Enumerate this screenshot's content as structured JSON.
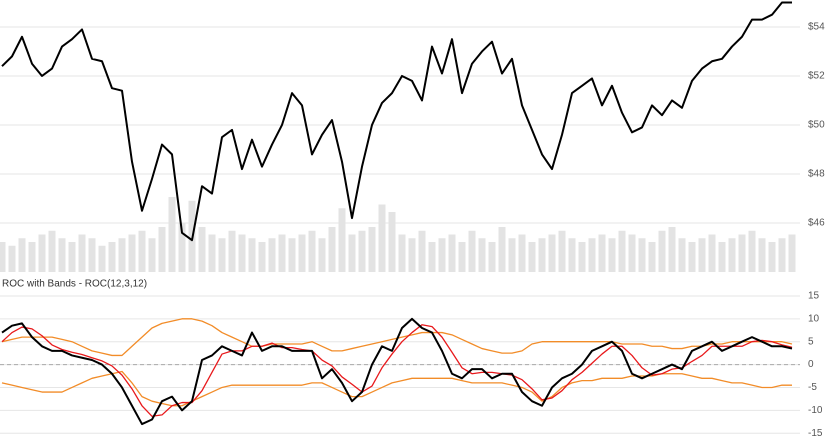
{
  "chart_data": [
    {
      "type": "line",
      "color": "#000000",
      "values": [
        52.4,
        52.8,
        53.6,
        52.5,
        52.0,
        52.3,
        53.2,
        53.5,
        53.9,
        52.7,
        52.6,
        51.5,
        51.4,
        48.5,
        46.5,
        47.8,
        49.2,
        48.8,
        45.6,
        45.3,
        47.5,
        47.2,
        49.5,
        49.8,
        48.2,
        49.4,
        48.3,
        49.2,
        50.0,
        51.3,
        50.8,
        48.8,
        49.6,
        50.2,
        48.5,
        46.2,
        48.3,
        50.0,
        50.9,
        51.3,
        52.0,
        51.8,
        51.0,
        53.2,
        52.1,
        53.5,
        51.3,
        52.5,
        53.0,
        53.4,
        52.1,
        52.7,
        50.8,
        49.8,
        48.8,
        48.2,
        49.6,
        51.3,
        51.6,
        51.9,
        50.8,
        51.6,
        50.5,
        49.7,
        49.9,
        50.8,
        50.4,
        51.0,
        50.7,
        51.8,
        52.3,
        52.6,
        52.7,
        53.2,
        53.6,
        54.3,
        54.3,
        54.5,
        55.0,
        55.0
      ],
      "volume": {
        "type": "bar",
        "color": "#e3e3e3",
        "values": [
          40,
          35,
          45,
          40,
          50,
          55,
          45,
          40,
          50,
          45,
          35,
          40,
          45,
          50,
          55,
          45,
          60,
          100,
          65,
          95,
          60,
          50,
          45,
          55,
          50,
          45,
          40,
          45,
          50,
          45,
          50,
          55,
          45,
          60,
          85,
          50,
          55,
          60,
          90,
          80,
          50,
          45,
          55,
          40,
          45,
          50,
          40,
          55,
          45,
          40,
          60,
          45,
          50,
          40,
          45,
          50,
          55,
          45,
          40,
          45,
          50,
          45,
          55,
          50,
          45,
          40,
          55,
          60,
          45,
          40,
          45,
          50,
          40,
          45,
          50,
          55,
          45,
          40,
          45,
          50
        ]
      },
      "ylim": [
        44,
        55.1
      ],
      "yticks": [
        {
          "value": 46,
          "label": "$46"
        },
        {
          "value": 48,
          "label": "$48"
        },
        {
          "value": 50,
          "label": "$50"
        },
        {
          "value": 52,
          "label": "$52"
        },
        {
          "value": 54,
          "label": "$54"
        }
      ],
      "grid": true
    },
    {
      "type": "line",
      "title": "ROC with Bands - ROC(12,3,12)",
      "series": [
        {
          "color": "#f28c28",
          "values": [
            5,
            5.5,
            6,
            6,
            6,
            6,
            5.5,
            5,
            4,
            3,
            2.5,
            2,
            2,
            4,
            6,
            8,
            9,
            9.5,
            10,
            10,
            9.5,
            8.5,
            7,
            6,
            5,
            4,
            4,
            4.5,
            4.5,
            4.5,
            4.5,
            5,
            4,
            3,
            3,
            3.5,
            4,
            4.5,
            5,
            5.5,
            6,
            6.5,
            7,
            7,
            7,
            6.5,
            5.5,
            4.5,
            3.5,
            3,
            2.5,
            2.5,
            3,
            4.5,
            5,
            5,
            5,
            5,
            5,
            5,
            5,
            5,
            4.5,
            4.5,
            4.5,
            4,
            4,
            3.5,
            3.5,
            4,
            4,
            4.5,
            4.5,
            5,
            5,
            5,
            5,
            5,
            5,
            4.5
          ]
        },
        {
          "color": "#f28c28",
          "values": [
            -4,
            -4.5,
            -5,
            -5.5,
            -6,
            -6,
            -6,
            -5,
            -4,
            -3,
            -2.5,
            -2,
            -1.5,
            -4,
            -7,
            -8,
            -8.5,
            -9,
            -9,
            -8,
            -7,
            -6,
            -5,
            -4.5,
            -4.5,
            -4.5,
            -4.5,
            -4.5,
            -4.5,
            -4.5,
            -4.5,
            -4,
            -4,
            -5,
            -6,
            -7,
            -7,
            -6,
            -5,
            -4,
            -3.5,
            -3,
            -3,
            -3,
            -3,
            -3,
            -3.5,
            -4,
            -4,
            -4,
            -4,
            -4.5,
            -5,
            -6,
            -8,
            -7,
            -5,
            -4,
            -3.5,
            -3.5,
            -3,
            -3,
            -3,
            -2.5,
            -2.5,
            -2.5,
            -2,
            -2,
            -2,
            -2.5,
            -3,
            -3,
            -3.5,
            -4,
            -4,
            -4.5,
            -5,
            -5,
            -4.5,
            -4.5
          ]
        },
        {
          "color": "#e8191c",
          "values": [
            5,
            7,
            8.2,
            7.8,
            6.3,
            4.3,
            3.3,
            2.7,
            2.2,
            1.5,
            0.8,
            -0.3,
            -2.3,
            -5.3,
            -9,
            -11.3,
            -11,
            -9,
            -8.3,
            -8.3,
            -5.7,
            -1.7,
            2.3,
            3,
            3,
            4,
            4,
            4.7,
            3.7,
            3.7,
            3.3,
            3,
            1,
            -0.3,
            -2.7,
            -4.3,
            -6,
            -4.7,
            -0.7,
            2.3,
            5,
            7,
            8.7,
            8.3,
            6,
            2.7,
            -0.7,
            -2,
            -1.7,
            -1.7,
            -2,
            -2.3,
            -3.3,
            -5.3,
            -7.7,
            -7.3,
            -5.7,
            -3.3,
            -1.7,
            0.3,
            2.3,
            4,
            4,
            2,
            -0.7,
            -2.3,
            -2,
            -1,
            -0.7,
            0.7,
            2,
            4,
            4,
            4,
            4,
            5,
            5.3,
            5,
            4.3,
            3.8
          ]
        },
        {
          "color": "#000000",
          "values": [
            7,
            8.5,
            9,
            6,
            4,
            3,
            3,
            2,
            1.5,
            1,
            0,
            -2,
            -5,
            -9,
            -13,
            -12,
            -8,
            -7,
            -10,
            -8,
            1,
            2,
            4,
            3,
            2,
            7,
            3,
            4,
            4,
            3,
            3,
            3,
            -3,
            -1,
            -4,
            -8,
            -6,
            0,
            4,
            3,
            8,
            10,
            8,
            7,
            3,
            -2,
            -3,
            -1,
            -1,
            -3,
            -2,
            -2,
            -6,
            -8,
            -9,
            -5,
            -3,
            -2,
            0,
            3,
            4,
            5,
            3,
            -2,
            -3,
            -2,
            -1,
            0,
            -1,
            3,
            4,
            5,
            3,
            4,
            5,
            6,
            5,
            4,
            4,
            3.5
          ]
        }
      ],
      "ylim": [
        -16.7,
        16.3
      ],
      "yticks": [
        -15,
        -10,
        -5,
        0,
        5,
        10,
        15
      ],
      "reference_line": 0,
      "grid": true
    }
  ]
}
